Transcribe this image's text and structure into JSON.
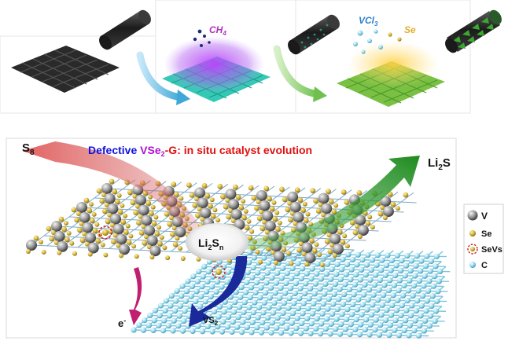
{
  "top_panel": {
    "methane_label": "CH",
    "methane_sub": "4",
    "vcl_label": "VCl",
    "vcl_sub": "3",
    "se_label": "Se",
    "colors": {
      "carbon": "#2a2a2a",
      "graphene": "#33c9b5",
      "vse2": "#7ac043",
      "plasma": "#b040e0"
    }
  },
  "bottom_panel": {
    "title_prefix": "Defective ",
    "title_formula": "VSe",
    "title_formula_sub": "2",
    "title_suffix": "-G: in situ catalyst evolution",
    "s8_label": "S",
    "s8_sub": "8",
    "li2s_label_a": "Li",
    "li2s_sub": "2",
    "li2s_label_b": "S",
    "li2sn_label_a": "Li",
    "li2sn_sub_a": "2",
    "li2sn_label_b": "S",
    "li2sn_sub_b": "n",
    "vs2_label": "VS",
    "vs2_sub": "2",
    "electron_label": "e",
    "electron_sup": "-",
    "colors": {
      "title_blue": "#1010e0",
      "title_purple": "#b010d0",
      "title_red": "#e01010",
      "s8_arrow": "#d03030",
      "li2s_arrow": "#2a9a2a",
      "vs2_arrow": "#1a2a9a",
      "electron_arrow": "#c02070"
    }
  },
  "legend": {
    "items": [
      {
        "label": "V",
        "icon": "gray-sphere-icon"
      },
      {
        "label": "Se",
        "icon": "gold-sphere-icon"
      },
      {
        "label": "SeVs",
        "icon": "vacancy-circle-icon"
      },
      {
        "label": "C",
        "icon": "cyan-sphere-icon"
      }
    ]
  }
}
